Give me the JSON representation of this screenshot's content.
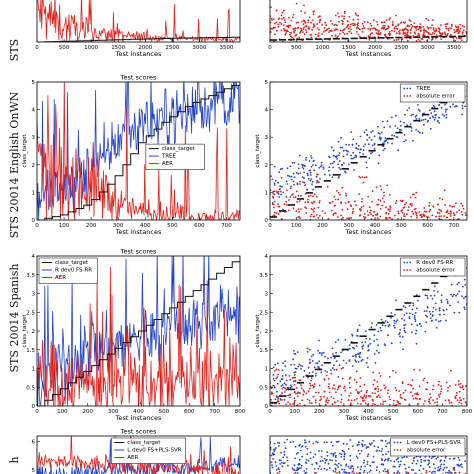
{
  "row_labels": [
    "STS",
    "STS 20014 English OnWN",
    "STS 20014 Spanish",
    "h"
  ],
  "colors": {
    "red": "#e0201a",
    "blue": "#2244cc",
    "black": "#111111"
  },
  "chart_data": [
    {
      "id": "p0",
      "type": "line",
      "xlabel": "Test  instances",
      "title": "",
      "xticks": [
        0,
        500,
        1000,
        1500,
        2000,
        2500,
        3000,
        3500
      ],
      "yticks": [],
      "xlim": [
        0,
        3750
      ],
      "ylim": [
        0,
        5
      ],
      "legend": [],
      "series": [
        {
          "name": "AER",
          "color": "#e0201a",
          "style": "noise-decay",
          "values": [
            3.2,
            1.6,
            0.9,
            0.6,
            0.45,
            0.35,
            0.3,
            0.28
          ]
        },
        {
          "name": "class_target",
          "color": "#111111",
          "style": "step",
          "values": [
            0,
            0.2,
            0.4,
            0.5
          ]
        }
      ]
    },
    {
      "id": "p1",
      "type": "scatter",
      "xlabel": "Test  instances",
      "title": "",
      "xticks": [
        0,
        500,
        1000,
        1500,
        2000,
        2500,
        3000,
        3500
      ],
      "yticks": [],
      "xlim": [
        0,
        3750
      ],
      "ylim": [
        0,
        5
      ],
      "legend": [],
      "series": [
        {
          "name": "absolute error",
          "color": "#e0201a",
          "style": "scatter-decay",
          "values": [
            2.5,
            0.8
          ]
        },
        {
          "name": "class_target",
          "color": "#111111",
          "style": "dash-steps",
          "values": [
            0.2,
            0.6
          ]
        }
      ]
    },
    {
      "id": "p2",
      "type": "line",
      "title": "Test scores",
      "xlabel": "Test  instances",
      "ylabel": "class_target",
      "xticks": [
        0,
        100,
        200,
        300,
        400,
        500,
        600,
        700
      ],
      "yticks": [
        0,
        1,
        2,
        3,
        4,
        5
      ],
      "xlim": [
        0,
        750
      ],
      "ylim": [
        0,
        5
      ],
      "legend": [
        "class_target",
        "TREE",
        "AER"
      ],
      "legend_pos": "center-left",
      "series": [
        {
          "name": "TREE",
          "color": "#2244cc",
          "style": "noise",
          "values": [
            0.8,
            1.2,
            1.8,
            3.2,
            3.6,
            3.9,
            4.2,
            4.4
          ]
        },
        {
          "name": "AER",
          "color": "#e0201a",
          "style": "noise-decay",
          "values": [
            1.8,
            1.5,
            1.2,
            0.5,
            0.2,
            0.15,
            0.12,
            0.1
          ]
        },
        {
          "name": "class_target",
          "color": "#111111",
          "style": "step",
          "values": [
            0,
            0.2,
            0.6,
            1.5,
            2.8,
            3.6,
            4.2,
            4.6,
            5
          ]
        }
      ]
    },
    {
      "id": "p3",
      "type": "scatter",
      "xlabel": "Test  instances",
      "ylabel": "class_target",
      "xticks": [
        0,
        100,
        200,
        300,
        400,
        500,
        600,
        700
      ],
      "yticks": [
        0,
        1,
        2,
        3,
        4,
        5
      ],
      "xlim": [
        0,
        750
      ],
      "ylim": [
        0,
        5
      ],
      "legend": [
        "TREE",
        "absolute error"
      ],
      "legend_pos": "top-right",
      "series": [
        {
          "name": "TREE",
          "color": "#2244cc",
          "style": "scatter-rising",
          "values": [
            1.0,
            4.5
          ]
        },
        {
          "name": "absolute error",
          "color": "#e0201a",
          "style": "scatter-low",
          "values": [
            1.5,
            0.6
          ]
        },
        {
          "name": "class_target",
          "color": "#111111",
          "style": "dash-steps",
          "values": [
            0,
            4.8
          ]
        }
      ]
    },
    {
      "id": "p4",
      "type": "line",
      "title": "Test scores",
      "xlabel": "Test  instances",
      "ylabel": "class_target",
      "xticks": [
        0,
        100,
        200,
        300,
        400,
        500,
        600,
        700,
        800
      ],
      "yticks": [
        0,
        0.5,
        1,
        1.5,
        2,
        2.5,
        3,
        3.5,
        4
      ],
      "xlim": [
        0,
        800
      ],
      "ylim": [
        0,
        4
      ],
      "legend": [
        "class_target",
        "R dev0 FS-RR",
        "AER"
      ],
      "legend_pos": "top-left",
      "series": [
        {
          "name": "R dev0 FS-RR",
          "color": "#2244cc",
          "style": "noise",
          "values": [
            0.3,
            1.2,
            1.4,
            1.6,
            1.8,
            2.0,
            2.2,
            2.4,
            2.6
          ]
        },
        {
          "name": "AER",
          "color": "#e0201a",
          "style": "noise-band",
          "values": [
            0.6,
            0.6
          ]
        },
        {
          "name": "class_target",
          "color": "#111111",
          "style": "step",
          "values": [
            0,
            0.5,
            1,
            1.5,
            2,
            2.5,
            3,
            3.5,
            4
          ]
        }
      ]
    },
    {
      "id": "p5",
      "type": "scatter",
      "xlabel": "Test  instances",
      "ylabel": "class_target",
      "xticks": [
        0,
        100,
        200,
        300,
        400,
        500,
        600,
        700,
        800
      ],
      "yticks": [
        0,
        0.5,
        1,
        1.5,
        2,
        2.5,
        3,
        3.5,
        4
      ],
      "xlim": [
        0,
        800
      ],
      "ylim": [
        0,
        4
      ],
      "legend": [
        "R dev0 FS-RR",
        "absolute error"
      ],
      "legend_pos": "top-right",
      "series": [
        {
          "name": "R dev0 FS-RR",
          "color": "#2244cc",
          "style": "scatter-mid",
          "values": [
            0.5,
            3.0
          ]
        },
        {
          "name": "absolute error",
          "color": "#e0201a",
          "style": "scatter-low",
          "values": [
            0.8,
            0.6
          ]
        },
        {
          "name": "class_target",
          "color": "#111111",
          "style": "dash-steps",
          "values": [
            0,
            3.9
          ]
        }
      ]
    },
    {
      "id": "p6",
      "type": "line",
      "title": "Test scores",
      "xlabel": "",
      "ylabel": "",
      "xticks": [],
      "yticks": [
        5,
        6
      ],
      "xlim": [
        0,
        800
      ],
      "ylim": [
        4.6,
        6.2
      ],
      "legend": [
        "class_target",
        "L dev0 FS+PLS-SVR",
        "AER"
      ],
      "legend_pos": "top-center",
      "series": [
        {
          "name": "L dev0 FS+PLS-SVR",
          "color": "#2244cc",
          "style": "noise",
          "values": [
            4.8,
            5.2
          ]
        },
        {
          "name": "AER",
          "color": "#e0201a",
          "style": "noise",
          "values": [
            5.3,
            4.9
          ]
        }
      ]
    },
    {
      "id": "p7",
      "type": "scatter",
      "title": "",
      "xlabel": "",
      "ylabel": "",
      "xticks": [],
      "yticks": [],
      "xlim": [
        0,
        800
      ],
      "ylim": [
        0,
        4
      ],
      "legend": [
        "L dev0 FS+PLS-SVR",
        "absolute error"
      ],
      "legend_pos": "top-right",
      "series": [
        {
          "name": "L dev0 FS+PLS-SVR",
          "color": "#2244cc",
          "style": "scatter-dense",
          "values": [
            0.5,
            3.5
          ]
        },
        {
          "name": "absolute error",
          "color": "#e0201a",
          "style": "scatter-low",
          "values": [
            0.5,
            0.5
          ]
        }
      ]
    }
  ]
}
